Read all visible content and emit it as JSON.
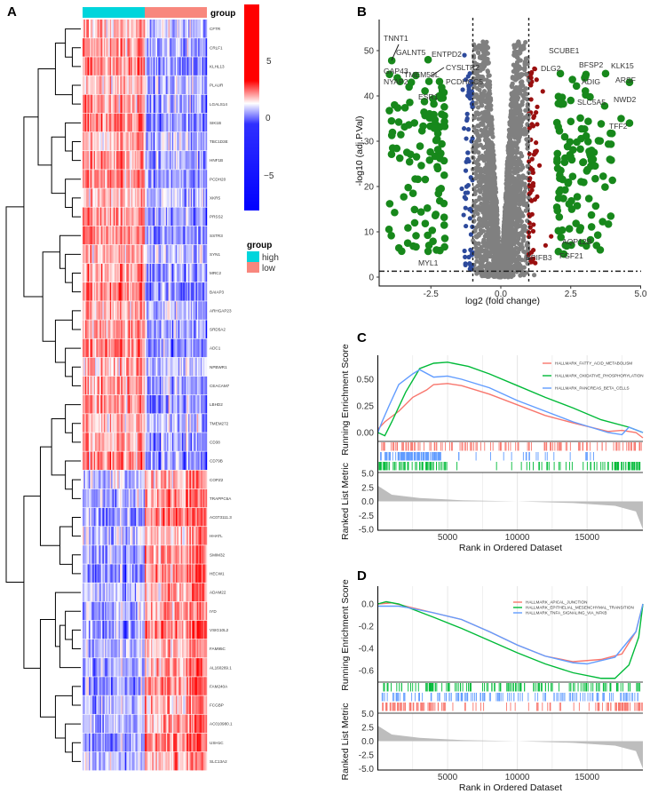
{
  "panels": {
    "a": "A",
    "b": "B",
    "c": "C",
    "d": "D"
  },
  "chart_data": [
    {
      "type": "heatmap",
      "panel": "A",
      "rows": [
        "CFTR",
        "CRLF1",
        "KLHL13",
        "PLAUR",
        "LGALS14",
        "SIK1B",
        "TBC1D3E",
        "HNF1B",
        "PCDH20",
        "XKR5",
        "PRSS2",
        "SSTR3",
        "SYN1",
        "MRC2",
        "BAIAP3",
        "ARHGAP23",
        "SRD5A2",
        "ADC1",
        "NPBWR1",
        "CEACAM7",
        "LBHD2",
        "TMEM272",
        "CD38",
        "CD79B",
        "COPZ2",
        "TRAPPC6A",
        "AC073111.3",
        "HHATL",
        "SMIM32",
        "HECW1",
        "ADAM22",
        "IYD",
        "VSIG10L2",
        "FAM95C",
        "AL160269.1",
        "FAM240A",
        "FCGBP",
        "AC010980.1",
        "USH1C",
        "SLC13A2"
      ],
      "higher_in_group": [
        "high",
        "high",
        "high",
        "high",
        "high",
        "high",
        "high",
        "high",
        "high",
        "high",
        "high",
        "high",
        "high",
        "high",
        "high",
        "high",
        "high",
        "high",
        "high",
        "high",
        "high",
        "high",
        "high",
        "high",
        "low",
        "low",
        "low",
        "low",
        "low",
        "low",
        "low",
        "low",
        "low",
        "low",
        "low",
        "low",
        "low",
        "low",
        "low",
        "low"
      ],
      "column_annotation": {
        "title": "group",
        "groups": [
          {
            "name": "high",
            "color": "#00d5dc",
            "fraction": 0.5
          },
          {
            "name": "low",
            "color": "#f8877d",
            "fraction": 0.5
          }
        ]
      },
      "color_scale": {
        "min": -8,
        "max": 8,
        "low_color": "#0000ff",
        "mid_color": "#ffffff",
        "high_color": "#ff0000",
        "ticks": [
          "5",
          "0",
          "−5"
        ]
      },
      "legend_title": "group",
      "dendrogram": "rows"
    },
    {
      "type": "scatter",
      "panel": "B",
      "xlabel": "log2 (fold change)",
      "ylabel": "-log10 (adj.P.Val)",
      "xlim": [
        -4.35,
        5.0
      ],
      "ylim": [
        -2,
        53
      ],
      "xticks": [
        "-2.5",
        "0.0",
        "2.5",
        "5.0"
      ],
      "yticks": [
        "0",
        "10",
        "20",
        "30",
        "40",
        "50"
      ],
      "thresholds": {
        "logfc": [
          -1,
          1
        ],
        "neg_log10_p": 1.3
      },
      "colors": {
        "ns": "#808080",
        "down": "#2d4a9c",
        "up": "#9a0f0f",
        "strong": "#17881b"
      },
      "labeled_points": [
        {
          "gene": "TNNT1",
          "x": -3.9,
          "y": 47.8
        },
        {
          "gene": "GALNT5",
          "x": -3.2,
          "y": 43
        },
        {
          "gene": "ENTPD2",
          "x": -2.6,
          "y": 48
        },
        {
          "gene": "GAP43",
          "x": -3.7,
          "y": 44
        },
        {
          "gene": "TMEM59L",
          "x": -2.2,
          "y": 40
        },
        {
          "gene": "CYSLTR2",
          "x": -1.3,
          "y": 49
        },
        {
          "gene": "NYAP2",
          "x": -3.8,
          "y": 38
        },
        {
          "gene": "PCDHGC5",
          "x": -1.2,
          "y": 36
        },
        {
          "gene": "ESR1",
          "x": -2.4,
          "y": 35
        },
        {
          "gene": "SCUBE1",
          "x": 1.2,
          "y": 46
        },
        {
          "gene": "DLG2",
          "x": 1.5,
          "y": 41
        },
        {
          "gene": "BFSP2",
          "x": 3.0,
          "y": 44
        },
        {
          "gene": "KLK15",
          "x": 4.6,
          "y": 43
        },
        {
          "gene": "ADIG",
          "x": 2.5,
          "y": 39
        },
        {
          "gene": "ARSF",
          "x": 4.3,
          "y": 35
        },
        {
          "gene": "NWD2",
          "x": 4.6,
          "y": 34
        },
        {
          "gene": "SLC5A5",
          "x": 3.3,
          "y": 26
        },
        {
          "gene": "TFF2",
          "x": 3.9,
          "y": 26
        },
        {
          "gene": "AQP12B",
          "x": 1.8,
          "y": 9
        },
        {
          "gene": "FGF21",
          "x": 1.6,
          "y": 7
        },
        {
          "gene": "MYL1",
          "x": -2.3,
          "y": 6
        },
        {
          "gene": "BPIFB3",
          "x": 1.0,
          "y": 5
        }
      ]
    },
    {
      "type": "line",
      "panel": "C",
      "ylabel_top": "Running Enrichment Score",
      "ylabel_bottom": "Ranked List Metric",
      "xlabel": "Rank in Ordered Dataset",
      "xlim": [
        0,
        19000
      ],
      "xticks": [
        "5000",
        "10000",
        "15000"
      ],
      "yticks_top": [
        "0.00",
        "0.25",
        "0.50"
      ],
      "ylim_top": [
        -0.06,
        0.72
      ],
      "yticks_bottom": [
        "5.0",
        "2.5",
        "0.0",
        "-2.5",
        "-5.0"
      ],
      "legend_position": "top-right",
      "series": [
        {
          "name": "HALLMARK_FATTY_ACID_METABOLISM",
          "color": "#f8766d",
          "points": [
            [
              0,
              0.03
            ],
            [
              500,
              0.1
            ],
            [
              1500,
              0.2
            ],
            [
              2500,
              0.33
            ],
            [
              3500,
              0.4
            ],
            [
              4000,
              0.45
            ],
            [
              5000,
              0.46
            ],
            [
              6000,
              0.44
            ],
            [
              8000,
              0.36
            ],
            [
              10000,
              0.26
            ],
            [
              12000,
              0.16
            ],
            [
              14000,
              0.09
            ],
            [
              16500,
              0.01
            ],
            [
              17500,
              0.02
            ],
            [
              18500,
              0.0
            ],
            [
              19000,
              -0.05
            ]
          ]
        },
        {
          "name": "HALLMARK_OXIDATIVE_PHOSPHORYLATION",
          "color": "#00ba38",
          "points": [
            [
              0,
              0
            ],
            [
              500,
              -0.03
            ],
            [
              1000,
              0.1
            ],
            [
              2000,
              0.38
            ],
            [
              3000,
              0.6
            ],
            [
              4000,
              0.65
            ],
            [
              5000,
              0.66
            ],
            [
              6500,
              0.62
            ],
            [
              8000,
              0.55
            ],
            [
              10000,
              0.44
            ],
            [
              12000,
              0.33
            ],
            [
              14000,
              0.23
            ],
            [
              16000,
              0.12
            ],
            [
              18000,
              0.05
            ],
            [
              19000,
              0.0
            ]
          ]
        },
        {
          "name": "HALLMARK_PANCREAS_BETA_CELLS",
          "color": "#619cff",
          "points": [
            [
              0,
              0
            ],
            [
              300,
              0.1
            ],
            [
              800,
              0.25
            ],
            [
              1500,
              0.45
            ],
            [
              2500,
              0.55
            ],
            [
              3000,
              0.59
            ],
            [
              4000,
              0.52
            ],
            [
              5000,
              0.53
            ],
            [
              6000,
              0.5
            ],
            [
              8000,
              0.42
            ],
            [
              10000,
              0.3
            ],
            [
              12000,
              0.2
            ],
            [
              14000,
              0.1
            ],
            [
              16500,
              0.0
            ],
            [
              17500,
              -0.02
            ],
            [
              18000,
              0.05
            ],
            [
              19000,
              0.0
            ]
          ]
        }
      ],
      "hit_density": [
        "spread",
        "front_and_back",
        "front"
      ],
      "ranked_metric": [
        [
          0,
          2.8
        ],
        [
          1000,
          1.2
        ],
        [
          3000,
          0.6
        ],
        [
          6000,
          0.2
        ],
        [
          10000,
          0.0
        ],
        [
          14000,
          -0.3
        ],
        [
          17000,
          -0.8
        ],
        [
          18500,
          -1.8
        ],
        [
          19000,
          -5.0
        ]
      ]
    },
    {
      "type": "line",
      "panel": "D",
      "ylabel_top": "Running Enrichment Score",
      "ylabel_bottom": "Ranked List Metric",
      "xlabel": "Rank in Ordered Dataset",
      "xlim": [
        0,
        19000
      ],
      "xticks": [
        "5000",
        "10000",
        "15000"
      ],
      "yticks_top": [
        "0.0",
        "-0.2",
        "-0.4",
        "-0.6"
      ],
      "ylim_top": [
        -0.7,
        0.08
      ],
      "yticks_bottom": [
        "5.0",
        "2.5",
        "0.0",
        "-2.5",
        "-5.0"
      ],
      "legend_position": "top-right",
      "series": [
        {
          "name": "HALLMARK_APICAL_JUNCTION",
          "color": "#f8766d",
          "points": [
            [
              0,
              0
            ],
            [
              1000,
              0.01
            ],
            [
              2000,
              -0.02
            ],
            [
              4000,
              -0.08
            ],
            [
              6000,
              -0.14
            ],
            [
              8000,
              -0.25
            ],
            [
              10000,
              -0.37
            ],
            [
              12000,
              -0.47
            ],
            [
              14000,
              -0.52
            ],
            [
              16000,
              -0.5
            ],
            [
              17500,
              -0.45
            ],
            [
              18500,
              -0.25
            ],
            [
              19000,
              0.0
            ]
          ]
        },
        {
          "name": "HALLMARK_EPITHELIAL_MESENCHYMAL_TRANSITION",
          "color": "#00ba38",
          "points": [
            [
              0,
              0
            ],
            [
              600,
              0.02
            ],
            [
              1500,
              0.0
            ],
            [
              4000,
              -0.12
            ],
            [
              6000,
              -0.22
            ],
            [
              8000,
              -0.33
            ],
            [
              10000,
              -0.44
            ],
            [
              12000,
              -0.54
            ],
            [
              14000,
              -0.62
            ],
            [
              16000,
              -0.67
            ],
            [
              17000,
              -0.67
            ],
            [
              18000,
              -0.55
            ],
            [
              18700,
              -0.3
            ],
            [
              19000,
              0.0
            ]
          ]
        },
        {
          "name": "HALLMARK_TNFA_SIGNALING_VIA_NFKB",
          "color": "#619cff",
          "points": [
            [
              0,
              -0.02
            ],
            [
              1500,
              -0.02
            ],
            [
              2000,
              -0.03
            ],
            [
              4000,
              -0.08
            ],
            [
              6000,
              -0.14
            ],
            [
              8000,
              -0.25
            ],
            [
              10000,
              -0.37
            ],
            [
              12000,
              -0.47
            ],
            [
              14000,
              -0.53
            ],
            [
              15000,
              -0.54
            ],
            [
              17000,
              -0.48
            ],
            [
              18500,
              -0.25
            ],
            [
              19000,
              0.0
            ]
          ]
        }
      ],
      "hit_density": [
        "front_and_back",
        "spread",
        "spread"
      ],
      "ranked_metric": [
        [
          0,
          2.8
        ],
        [
          1000,
          1.2
        ],
        [
          3000,
          0.6
        ],
        [
          6000,
          0.2
        ],
        [
          10000,
          0.0
        ],
        [
          14000,
          -0.3
        ],
        [
          17000,
          -0.8
        ],
        [
          18500,
          -1.8
        ],
        [
          19000,
          -5.0
        ]
      ]
    }
  ]
}
